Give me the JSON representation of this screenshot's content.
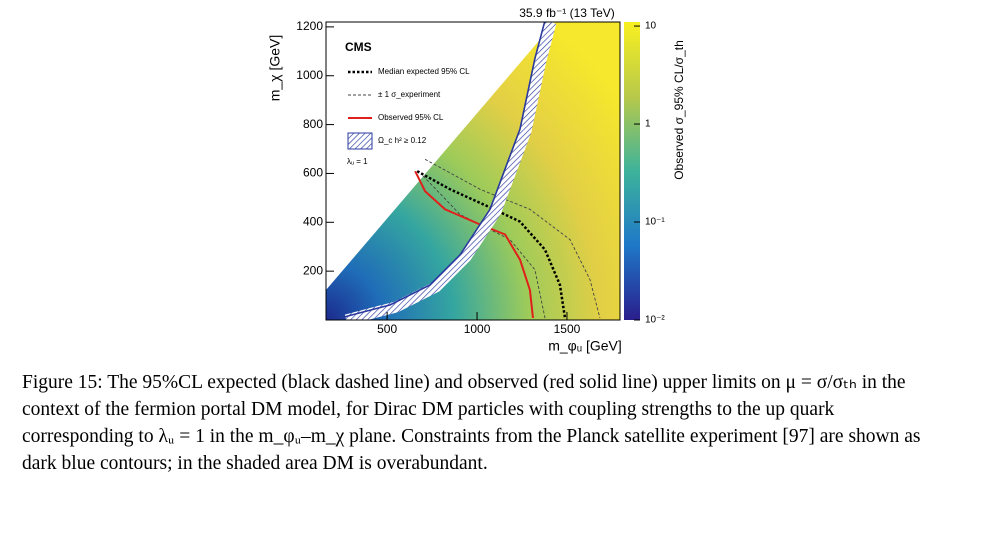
{
  "chart_data": {
    "type": "contour",
    "title": "35.9 fb⁻¹ (13 TeV)",
    "xlabel": "m_φᵤ [GeV]",
    "ylabel": "m_χ [GeV]",
    "colorbar_label": "Observed σ_95% CL/σ_th",
    "experiment": "CMS",
    "annotation": "λᵤ = 1",
    "xlim": [
      160,
      1795
    ],
    "ylim": [
      0,
      1220
    ],
    "xticks": [
      500,
      1000,
      1500
    ],
    "yticks": [
      200,
      400,
      600,
      800,
      1000,
      1200
    ],
    "clim": [
      0.01,
      11
    ],
    "colorbar_log": true,
    "cticks": [
      10,
      1,
      {
        "value": 0.1,
        "label": "10⁻¹"
      },
      {
        "value": 0.01,
        "label": "10⁻²"
      }
    ],
    "series": [
      {
        "name": "Median expected 95% CL",
        "color": "#000000",
        "style": "dotted",
        "x": [
          667,
          850,
          1072,
          1239,
          1378,
          1461,
          1489
        ],
        "y": [
          609,
          535,
          461,
          403,
          288,
          144,
          8
        ]
      },
      {
        "name": "± 1 σ_experiment",
        "color": "#444444",
        "style": "dashed",
        "x": [
          711,
          1017,
          1294,
          1517,
          1628,
          1683,
          null,
          700,
          906,
          1183,
          1322,
          1378
        ],
        "y": [
          658,
          535,
          453,
          329,
          165,
          8,
          null,
          590,
          432,
          329,
          206,
          8
        ]
      },
      {
        "name": "Observed 95% CL",
        "color": "#e0201b",
        "style": "solid",
        "x": [
          656,
          711,
          822,
          1017,
          1156,
          1239,
          1294,
          1311
        ],
        "y": [
          609,
          527,
          453,
          391,
          350,
          247,
          123,
          8
        ]
      },
      {
        "name": "Ω_c h² ≥ 0.12",
        "color": "#2a3aa0",
        "style": "hatched",
        "x": [
          1378,
          1322,
          1239,
          1072,
          906,
          739,
          517,
          239
        ],
        "y": [
          1226,
          1070,
          782,
          453,
          267,
          144,
          62,
          8
        ]
      }
    ]
  },
  "caption": "Figure 15: The 95%CL expected (black dashed line) and observed (red solid line) upper limits on μ = σ/σₜₕ in the context of the fermion portal DM model, for Dirac DM particles with coupling strengths to the up quark corresponding to λᵤ = 1 in the m_φᵤ–m_χ plane. Constraints from the Planck satellite experiment [97] are shown as dark blue contours; in the shaded area DM is overabundant."
}
